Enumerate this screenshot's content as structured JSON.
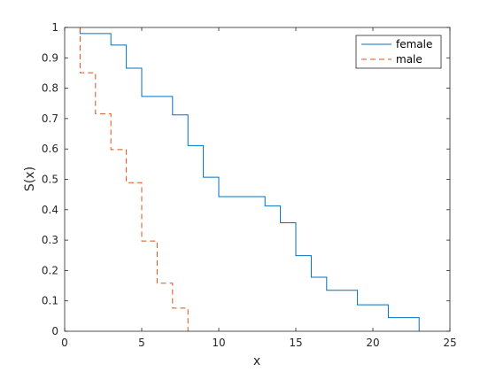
{
  "chart_data": {
    "type": "line",
    "title": "",
    "xlabel": "x",
    "ylabel": "S(x)",
    "xlim": [
      0,
      25
    ],
    "ylim": [
      0,
      1
    ],
    "xticks": [
      0,
      5,
      10,
      15,
      20,
      25
    ],
    "yticks": [
      0,
      0.1,
      0.2,
      0.3,
      0.4,
      0.5,
      0.6,
      0.7,
      0.8,
      0.9,
      1
    ],
    "grid": false,
    "legend_position": "top-right",
    "series": [
      {
        "name": "female",
        "style": "solid",
        "color": "#0072BD",
        "x": [
          1,
          3,
          4,
          5,
          7,
          8,
          9,
          10,
          13,
          14,
          15,
          16,
          17,
          19,
          21,
          23
        ],
        "y": [
          0.98,
          0.942,
          0.866,
          0.773,
          0.712,
          0.611,
          0.507,
          0.443,
          0.413,
          0.357,
          0.249,
          0.178,
          0.135,
          0.087,
          0.045,
          0.0
        ]
      },
      {
        "name": "male",
        "style": "dashed",
        "color": "#D95319",
        "x": [
          1,
          2,
          3,
          4,
          5,
          6,
          7,
          8
        ],
        "y": [
          0.851,
          0.716,
          0.598,
          0.489,
          0.297,
          0.158,
          0.076,
          0.0
        ]
      }
    ]
  }
}
